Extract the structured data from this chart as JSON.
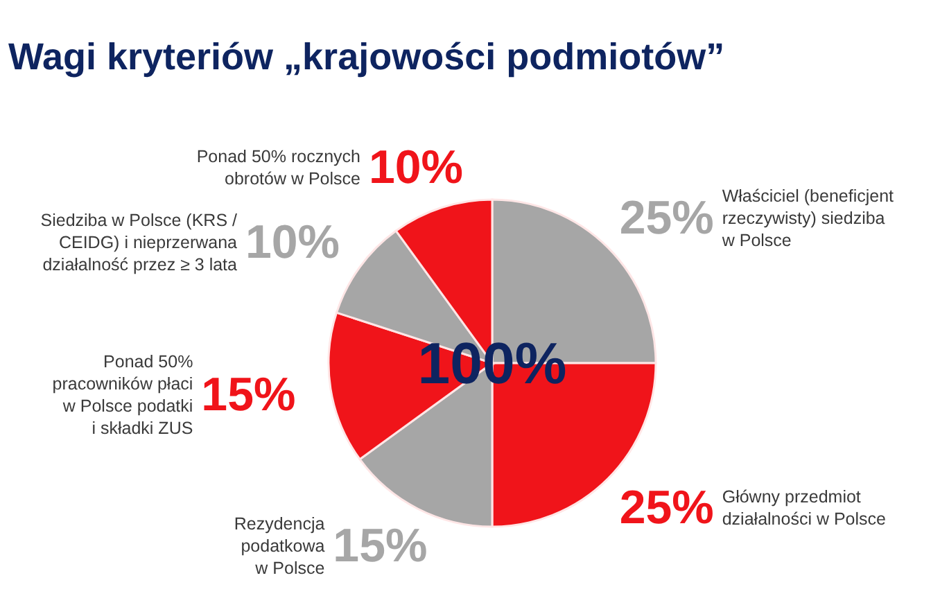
{
  "chart_data": {
    "type": "pie",
    "title": "Wagi kryteriów „krajowości podmiotów”",
    "categories": [
      "Właściciel (beneficjent\nrzeczywisty) siedziba\nw Polsce",
      "Główny przedmiot\ndziałalności w Polsce",
      "Rezydencja\npodatkowa\nw Polsce",
      "Ponad 50%\npracowników płaci\nw Polsce podatki\ni składki ZUS",
      "Siedziba w Polsce (KRS /\nCEIDG) i nieprzerwana\ndziałalność przez ≥ 3 lata",
      "Ponad 50% rocznych\nobrotów w Polsce"
    ],
    "values": [
      25,
      25,
      15,
      15,
      10,
      10
    ],
    "colors": [
      "#a6a6a6",
      "#f0141a",
      "#a6a6a6",
      "#f0141a",
      "#a6a6a6",
      "#f0141a"
    ],
    "value_labels": [
      "25%",
      "25%",
      "15%",
      "15%",
      "10%",
      "10%"
    ],
    "annotations": [
      "100%"
    ]
  }
}
